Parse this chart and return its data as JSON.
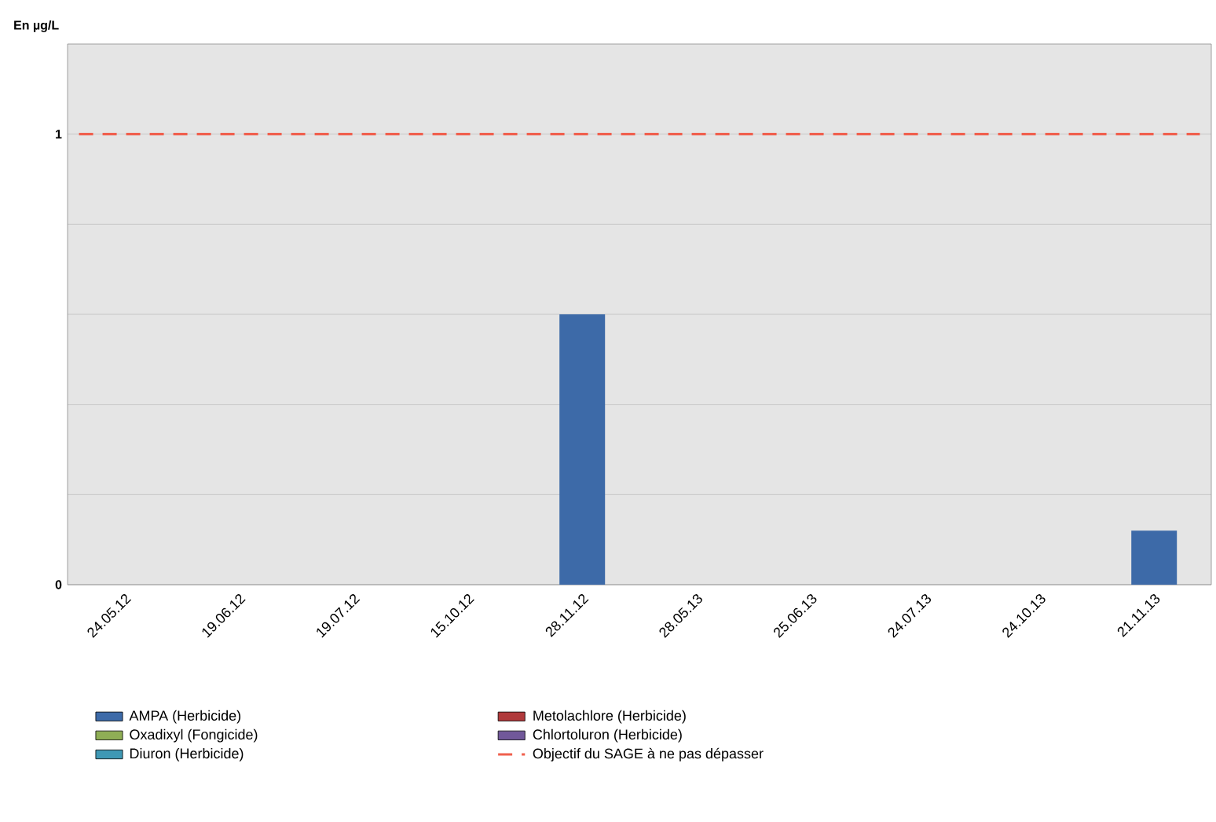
{
  "chart_data": {
    "type": "bar",
    "ylabel": "En µg/L",
    "categories": [
      "24.05.12",
      "19.06.12",
      "19.07.12",
      "15.10.12",
      "28.11.12",
      "28.05.13",
      "25.06.13",
      "24.07.13",
      "24.10.13",
      "21.11.13"
    ],
    "series": [
      {
        "name": "AMPA (Herbicide)",
        "color": "#3d6aa8",
        "values": [
          null,
          null,
          null,
          null,
          0.6,
          null,
          null,
          null,
          null,
          0.12
        ]
      },
      {
        "name": "Metolachlore (Herbicide)",
        "color": "#b0393b",
        "values": [
          null,
          null,
          null,
          null,
          null,
          null,
          null,
          null,
          null,
          null
        ]
      },
      {
        "name": "Oxadixyl (Fongicide)",
        "color": "#8fae55",
        "values": [
          null,
          null,
          null,
          null,
          null,
          null,
          null,
          null,
          null,
          null
        ]
      },
      {
        "name": "Chlortoluron (Herbicide)",
        "color": "#71589a",
        "values": [
          null,
          null,
          null,
          null,
          null,
          null,
          null,
          null,
          null,
          null
        ]
      },
      {
        "name": "Diuron (Herbicide)",
        "color": "#3f98b4",
        "values": [
          null,
          null,
          null,
          null,
          null,
          null,
          null,
          null,
          null,
          null
        ]
      }
    ],
    "ylim": [
      0,
      1.2
    ],
    "yticks": [
      0,
      {
        "value": 0.2,
        "label": null
      },
      {
        "value": 0.4,
        "label": null
      },
      {
        "value": 0.6,
        "label": null
      },
      {
        "value": 0.8,
        "label": null
      },
      1
    ],
    "grid": "y",
    "legend": "bottom",
    "ref_lines": [
      {
        "axis": "y",
        "value": 1,
        "label": "Objectif du SAGE à ne pas dépasser",
        "color": "#f0604e",
        "line_style": "dashed"
      }
    ]
  }
}
